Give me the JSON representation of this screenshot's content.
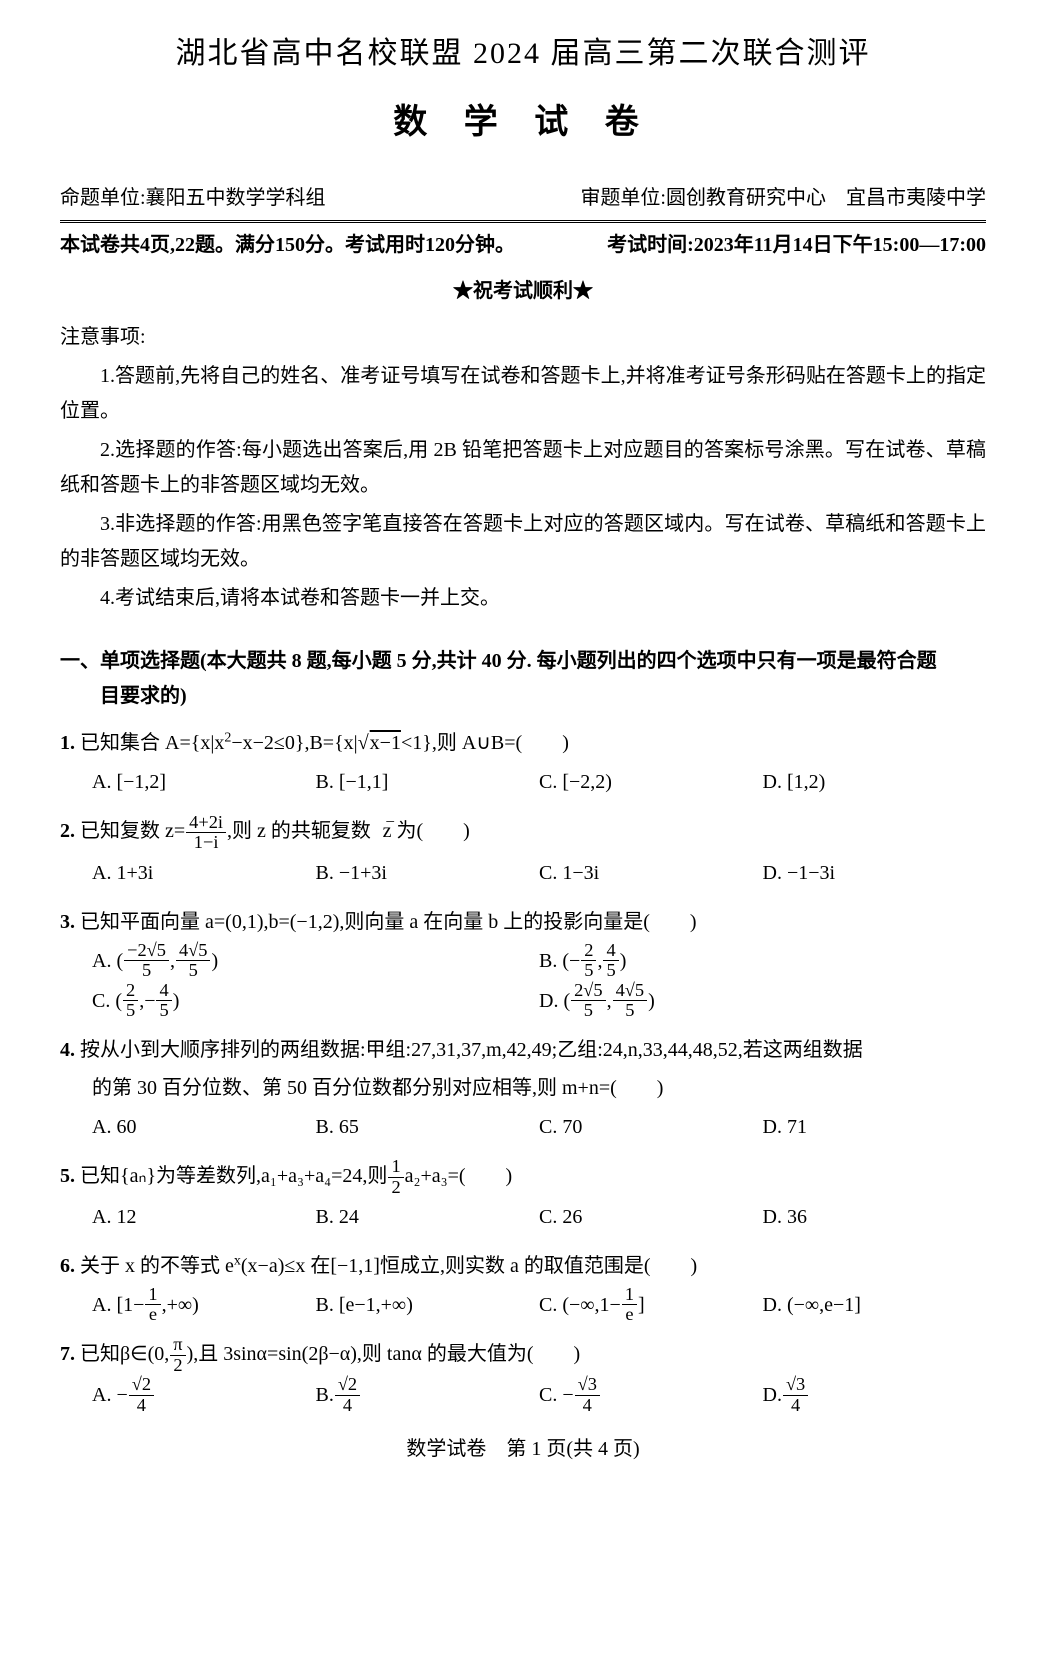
{
  "header": {
    "main_title": "湖北省高中名校联盟 2024 届高三第二次联合测评",
    "sub_title": "数 学 试 卷",
    "credit_left": "命题单位:襄阳五中数学学科组",
    "credit_right": "审题单位:圆创教育研究中心　宜昌市夷陵中学",
    "info_left": "本试卷共4页,22题。满分150分。考试用时120分钟。",
    "info_right": "考试时间:2023年11月14日下午15:00—17:00",
    "good_luck": "★祝考试顺利★"
  },
  "notice": {
    "title": "注意事项:",
    "items": [
      "1.答题前,先将自己的姓名、准考证号填写在试卷和答题卡上,并将准考证号条形码贴在答题卡上的指定位置。",
      "2.选择题的作答:每小题选出答案后,用 2B 铅笔把答题卡上对应题目的答案标号涂黑。写在试卷、草稿纸和答题卡上的非答题区域均无效。",
      "3.非选择题的作答:用黑色签字笔直接答在答题卡上对应的答题区域内。写在试卷、草稿纸和答题卡上的非答题区域均无效。",
      "4.考试结束后,请将本试卷和答题卡一并上交。"
    ]
  },
  "section1": {
    "heading_l1": "一、单项选择题(本大题共 8 题,每小题 5 分,共计 40 分. 每小题列出的四个选项中只有一项是最符合题",
    "heading_l2": "目要求的)"
  },
  "q1": {
    "num": "1.",
    "stem_a": " 已知集合 A={x|x",
    "stem_b": "−x−2≤0},B={x|",
    "stem_c": "<1},则 A∪B=(　　)",
    "A": "A. [−1,2]",
    "B": "B. [−1,1]",
    "C": "C. [−2,2)",
    "D": "D. [1,2)"
  },
  "q2": {
    "num": "2.",
    "stem_a": " 已知复数 z=",
    "stem_b": ",则 z 的共轭复数 ",
    "stem_c": " 为(　　)",
    "zbar": "z",
    "frac_n": "4+2i",
    "frac_d": "1−i",
    "A": "A. 1+3i",
    "B": "B. −1+3i",
    "C": "C. 1−3i",
    "D": "D. −1−3i"
  },
  "q3": {
    "num": "3.",
    "stem": " 已知平面向量 a=(0,1),b=(−1,2),则向量 a 在向量 b 上的投影向量是(　　)",
    "A_pre": "A. (",
    "A_mid": ",",
    "A_post": ")",
    "A_n1": "−2√5",
    "A_d1": "5",
    "A_n2": "4√5",
    "A_d2": "5",
    "B_pre": "B. (−",
    "B_mid": ",",
    "B_post": ")",
    "B_n1": "2",
    "B_d1": "5",
    "B_n2": "4",
    "B_d2": "5",
    "C_pre": "C. (",
    "C_mid": ",−",
    "C_post": ")",
    "C_n1": "2",
    "C_d1": "5",
    "C_n2": "4",
    "C_d2": "5",
    "D_pre": "D. (",
    "D_mid": ",",
    "D_post": ")",
    "D_n1": "2√5",
    "D_d1": "5",
    "D_n2": "4√5",
    "D_d2": "5"
  },
  "q4": {
    "num": "4.",
    "stem_l1": " 按从小到大顺序排列的两组数据:甲组:27,31,37,m,42,49;乙组:24,n,33,44,48,52,若这两组数据",
    "stem_l2": "的第 30 百分位数、第 50 百分位数都分别对应相等,则 m+n=(　　)",
    "A": "A. 60",
    "B": "B. 65",
    "C": "C. 70",
    "D": "D. 71"
  },
  "q5": {
    "num": "5.",
    "stem_a": " 已知{aₙ}为等差数列,a₁+a₃+a₄=24,则",
    "stem_b": "a₂+a₃=(　　)",
    "frac_n": "1",
    "frac_d": "2",
    "A": "A. 12",
    "B": "B. 24",
    "C": "C. 26",
    "D": "D. 36"
  },
  "q6": {
    "num": "6.",
    "stem_a": " 关于 x 的不等式 e",
    "stem_b": "(x−a)≤x 在[−1,1]恒成立,则实数 a 的取值范围是(　　)",
    "A_pre": "A. [1−",
    "A_post": ",+∞)",
    "A_n": "1",
    "A_d": "e",
    "B": "B. [e−1,+∞)",
    "C_pre": "C. (−∞,1−",
    "C_post": "]",
    "C_n": "1",
    "C_d": "e",
    "D": "D. (−∞,e−1]"
  },
  "q7": {
    "num": "7.",
    "stem_a": " 已知β∈(0,",
    "stem_b": "),且 3sinα=sin(2β−α),则 tanα 的最大值为(　　)",
    "frac_n": "π",
    "frac_d": "2",
    "A_pre": "A. −",
    "A_n": "√2",
    "A_d": "4",
    "B_pre": "B. ",
    "B_n": "√2",
    "B_d": "4",
    "C_pre": "C. −",
    "C_n": "√3",
    "C_d": "4",
    "D_pre": "D. ",
    "D_n": "√3",
    "D_d": "4"
  },
  "footer": "数学试卷　第 1 页(共 4 页)"
}
